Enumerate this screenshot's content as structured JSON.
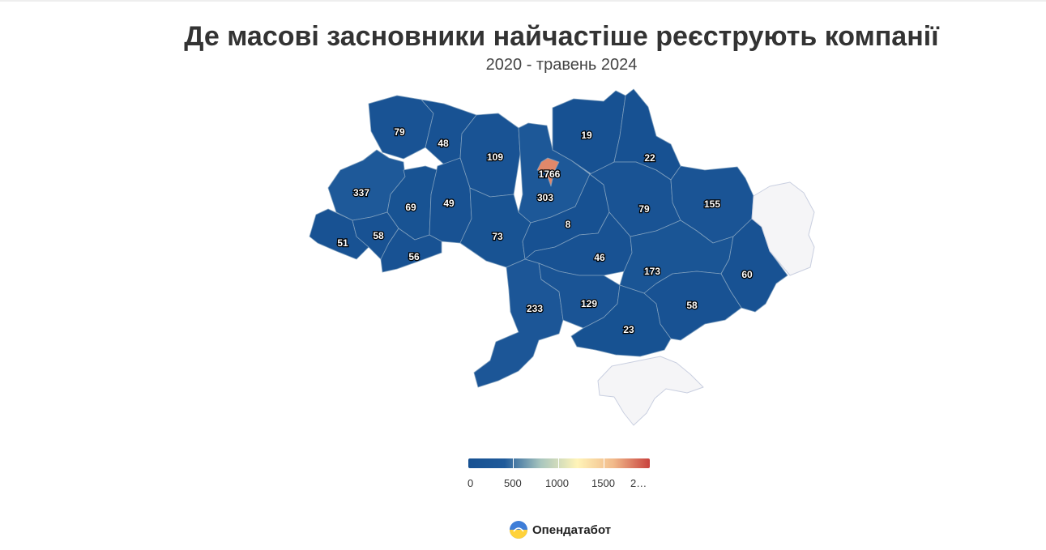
{
  "header": {
    "title": "Де масові засновники найчастіше реєструють компанії",
    "subtitle": "2020 - травень 2024"
  },
  "chart_data": {
    "type": "choropleth",
    "value_range": [
      0,
      2000
    ],
    "regions": [
      {
        "name": "Волинська",
        "value": 79
      },
      {
        "name": "Рівненська",
        "value": 48
      },
      {
        "name": "Житомирська",
        "value": 109
      },
      {
        "name": "Київська",
        "value": 303
      },
      {
        "name": "м. Київ",
        "value": 1766
      },
      {
        "name": "Чернігівська",
        "value": 19
      },
      {
        "name": "Сумська",
        "value": 22
      },
      {
        "name": "Львівська",
        "value": 337
      },
      {
        "name": "Тернопільська",
        "value": 69
      },
      {
        "name": "Хмельницька",
        "value": 49
      },
      {
        "name": "Закарпатська",
        "value": 51
      },
      {
        "name": "Івано-Франківська",
        "value": 58
      },
      {
        "name": "Чернівецька",
        "value": 56
      },
      {
        "name": "Вінницька",
        "value": 73
      },
      {
        "name": "Черкаська",
        "value": 8
      },
      {
        "name": "Полтавська",
        "value": 79
      },
      {
        "name": "Харківська",
        "value": 155
      },
      {
        "name": "Кіровоградська",
        "value": 46
      },
      {
        "name": "Дніпропетровська",
        "value": 173
      },
      {
        "name": "Луганська",
        "value": 60
      },
      {
        "name": "Одеська",
        "value": 233
      },
      {
        "name": "Миколаївська",
        "value": 129
      },
      {
        "name": "Херсонська",
        "value": 23
      },
      {
        "name": "Запорізька",
        "value": 58
      },
      {
        "name": "Донецька",
        "value": null
      },
      {
        "name": "АР Крим",
        "value": null
      }
    ],
    "legend": {
      "ticks": [
        "0",
        "500",
        "1000",
        "1500",
        "2…"
      ],
      "colors": [
        "#175192",
        "#1f5a9a",
        "#a9c6be",
        "#fff4b8",
        "#f1b98a",
        "#c8423e"
      ]
    },
    "no_data_color": "#f5f5f7"
  },
  "branding": {
    "name": "Опендатабот"
  }
}
